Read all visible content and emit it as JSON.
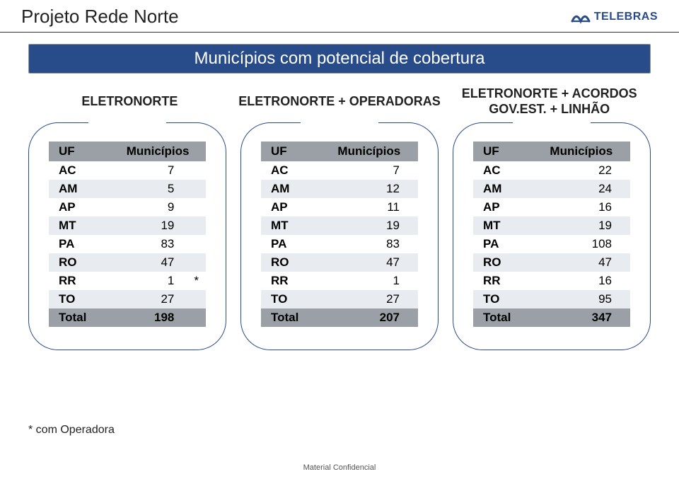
{
  "header": {
    "title": "Projeto Rede Norte",
    "brand": "TELEBRAS",
    "brand_color": "#284b8a"
  },
  "subtitle": "Municípios com potencial de cobertura",
  "scenarios": [
    {
      "label": "ELETRONORTE"
    },
    {
      "label": "ELETRONORTE + OPERADORAS"
    },
    {
      "label": "ELETRONORTE + ACORDOS GOV.EST. + LINHÃO"
    }
  ],
  "colors": {
    "accent": "#284b8a",
    "header_bg": "#9aa0a6",
    "row_alt_bg": "#e8ebef",
    "card_border": "#284b8a",
    "text": "#222222",
    "footer": "#555555",
    "page_bg": "#ffffff"
  },
  "table_headers": {
    "uf": "UF",
    "mun": "Municípios"
  },
  "tables": [
    {
      "rows": [
        {
          "uf": "AC",
          "val": "7",
          "note": ""
        },
        {
          "uf": "AM",
          "val": "5",
          "note": ""
        },
        {
          "uf": "AP",
          "val": "9",
          "note": ""
        },
        {
          "uf": "MT",
          "val": "19",
          "note": ""
        },
        {
          "uf": "PA",
          "val": "83",
          "note": ""
        },
        {
          "uf": "RO",
          "val": "47",
          "note": ""
        },
        {
          "uf": "RR",
          "val": "1",
          "note": "*"
        },
        {
          "uf": "TO",
          "val": "27",
          "note": ""
        }
      ],
      "total_label": "Total",
      "total_val": "198",
      "has_note_col": true
    },
    {
      "rows": [
        {
          "uf": "AC",
          "val": "7"
        },
        {
          "uf": "AM",
          "val": "12"
        },
        {
          "uf": "AP",
          "val": "11"
        },
        {
          "uf": "MT",
          "val": "19"
        },
        {
          "uf": "PA",
          "val": "83"
        },
        {
          "uf": "RO",
          "val": "47"
        },
        {
          "uf": "RR",
          "val": "1"
        },
        {
          "uf": "TO",
          "val": "27"
        }
      ],
      "total_label": "Total",
      "total_val": "207",
      "has_note_col": false
    },
    {
      "rows": [
        {
          "uf": "AC",
          "val": "22"
        },
        {
          "uf": "AM",
          "val": "24"
        },
        {
          "uf": "AP",
          "val": "16"
        },
        {
          "uf": "MT",
          "val": "19"
        },
        {
          "uf": "PA",
          "val": "108"
        },
        {
          "uf": "RO",
          "val": "47"
        },
        {
          "uf": "RR",
          "val": "16"
        },
        {
          "uf": "TO",
          "val": "95"
        }
      ],
      "total_label": "Total",
      "total_val": "347",
      "has_note_col": false
    }
  ],
  "footnote": "* com Operadora",
  "footer": "Material Confidencial"
}
